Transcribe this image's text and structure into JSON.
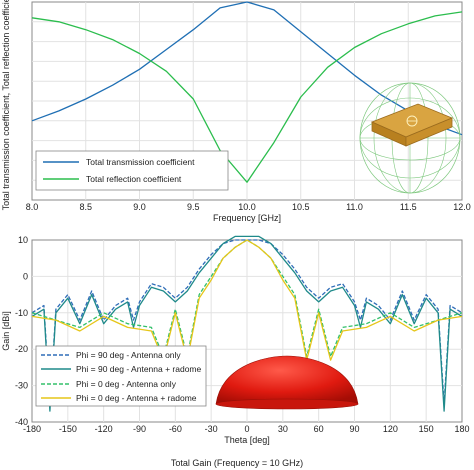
{
  "caption": "Total Gain (Frequency = 10 GHz)",
  "chart_data": [
    {
      "type": "line",
      "xlabel": "Frequency [GHz]",
      "ylabel": "Total transmission coefficient, Total reflection coefficient",
      "xlim": [
        8.0,
        12.0
      ],
      "ylim": [
        0.0,
        1.0
      ],
      "xticks": [
        "8.0",
        "8.5",
        "9.0",
        "9.5",
        "10.0",
        "10.5",
        "11.0",
        "11.5",
        "12.0"
      ],
      "grid": true,
      "legend_position": "bottom-left",
      "series": [
        {
          "name": "Total transmission coefficient",
          "color": "#1f6fb4",
          "x": [
            8.0,
            8.25,
            8.5,
            8.75,
            9.0,
            9.25,
            9.5,
            9.75,
            10.0,
            10.25,
            10.5,
            10.75,
            11.0,
            11.25,
            11.5,
            11.75,
            12.0
          ],
          "y": [
            0.4,
            0.45,
            0.51,
            0.58,
            0.66,
            0.76,
            0.86,
            0.97,
            1.0,
            0.96,
            0.85,
            0.74,
            0.63,
            0.53,
            0.45,
            0.38,
            0.33
          ]
        },
        {
          "name": "Total reflection coefficient",
          "color": "#2bbd4d",
          "x": [
            8.0,
            8.25,
            8.5,
            8.75,
            9.0,
            9.25,
            9.5,
            9.75,
            10.0,
            10.25,
            10.5,
            10.75,
            11.0,
            11.25,
            11.5,
            11.75,
            12.0
          ],
          "y": [
            0.92,
            0.9,
            0.86,
            0.81,
            0.74,
            0.65,
            0.51,
            0.25,
            0.09,
            0.29,
            0.52,
            0.67,
            0.77,
            0.84,
            0.89,
            0.93,
            0.95
          ]
        }
      ]
    },
    {
      "type": "line",
      "xlabel": "Theta [deg]",
      "ylabel": "Gain [dBi]",
      "xlim": [
        -180,
        180
      ],
      "ylim": [
        -40,
        10
      ],
      "xticks": [
        "-180",
        "-150",
        "-120",
        "-90",
        "-60",
        "-30",
        "0",
        "30",
        "60",
        "90",
        "120",
        "150",
        "180"
      ],
      "yticks": [
        "10",
        "0",
        "-10",
        "-20",
        "-30",
        "-40"
      ],
      "grid": true,
      "legend_position": "bottom-left",
      "series": [
        {
          "name": "Phi = 90 deg - Antenna only",
          "color": "#2f6db8",
          "dashed": true,
          "x": [
            -180,
            -170,
            -165,
            -160,
            -150,
            -140,
            -130,
            -120,
            -110,
            -100,
            -95,
            -90,
            -80,
            -70,
            -60,
            -50,
            -40,
            -30,
            -20,
            -10,
            0,
            10,
            20,
            30,
            40,
            50,
            60,
            70,
            80,
            90,
            95,
            100,
            110,
            120,
            130,
            140,
            150,
            160,
            165,
            170,
            180
          ],
          "y": [
            -10,
            -8,
            -35,
            -9,
            -5,
            -12,
            -4,
            -12,
            -8,
            -6,
            -12,
            -7,
            -2,
            -3,
            -6,
            -3,
            2,
            6,
            9,
            10,
            10,
            10,
            9,
            6,
            2,
            -3,
            -6,
            -3,
            -2,
            -7,
            -12,
            -6,
            -8,
            -12,
            -4,
            -12,
            -5,
            -9,
            -35,
            -8,
            -10
          ]
        },
        {
          "name": "Phi = 90 deg - Antenna + radome",
          "color": "#1f8a8a",
          "dashed": false,
          "x": [
            -180,
            -170,
            -165,
            -160,
            -150,
            -140,
            -130,
            -120,
            -110,
            -100,
            -95,
            -90,
            -80,
            -70,
            -60,
            -50,
            -40,
            -30,
            -20,
            -10,
            0,
            10,
            20,
            30,
            40,
            50,
            60,
            70,
            80,
            90,
            95,
            100,
            110,
            120,
            130,
            140,
            150,
            160,
            165,
            170,
            180
          ],
          "y": [
            -11,
            -9,
            -37,
            -10,
            -6,
            -13,
            -5,
            -13,
            -9,
            -7,
            -14,
            -8,
            -3,
            -4,
            -7,
            -4,
            1,
            5,
            9,
            11,
            11,
            11,
            9,
            5,
            1,
            -4,
            -7,
            -4,
            -3,
            -8,
            -14,
            -7,
            -9,
            -13,
            -5,
            -13,
            -6,
            -10,
            -37,
            -9,
            -11
          ]
        },
        {
          "name": "Phi = 0 deg - Antenna only",
          "color": "#33c06a",
          "dashed": true,
          "x": [
            -180,
            -160,
            -140,
            -120,
            -100,
            -80,
            -70,
            -60,
            -50,
            -40,
            -30,
            -20,
            -10,
            0,
            10,
            20,
            30,
            40,
            50,
            60,
            70,
            80,
            100,
            120,
            140,
            160,
            180
          ],
          "y": [
            -10,
            -12,
            -14,
            -10,
            -13,
            -14,
            -22,
            -9,
            -22,
            -5,
            0,
            5,
            8,
            10,
            8,
            5,
            0,
            -5,
            -22,
            -9,
            -22,
            -14,
            -13,
            -10,
            -14,
            -12,
            -10
          ]
        },
        {
          "name": "Phi = 0 deg - Antenna + radome",
          "color": "#e6c619",
          "dashed": false,
          "x": [
            -180,
            -160,
            -140,
            -120,
            -100,
            -80,
            -70,
            -60,
            -50,
            -40,
            -30,
            -20,
            -10,
            0,
            10,
            20,
            30,
            40,
            50,
            60,
            70,
            80,
            100,
            120,
            140,
            160,
            180
          ],
          "y": [
            -11,
            -12,
            -15,
            -11,
            -14,
            -15,
            -23,
            -10,
            -23,
            -6,
            -1,
            5,
            8,
            10,
            8,
            5,
            -1,
            -6,
            -23,
            -10,
            -23,
            -15,
            -14,
            -11,
            -15,
            -12,
            -11
          ]
        }
      ]
    }
  ]
}
